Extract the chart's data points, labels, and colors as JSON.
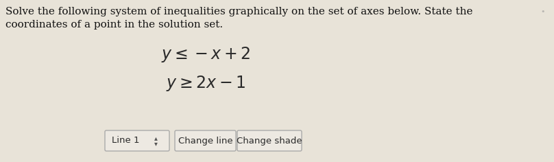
{
  "background_color": "#e8e3d8",
  "title_line1": "Solve the following system of inequalities graphically on the set of axes below. State the",
  "title_line2": "coordinates of a point in the solution set.",
  "eq1_latex": "$y \\leq -x + 2$",
  "eq2_latex": "$y \\geq 2x - 1$",
  "button1_text": "Line 1",
  "button2_text": "Change line",
  "button3_text": "Change shade",
  "text_color": "#2a2a2a",
  "title_color": "#111111",
  "button_bg": "#ede9e2",
  "button_border": "#aaaaaa",
  "arrow_color": "#555555",
  "title_fontsize": 11.0,
  "eq_fontsize": 17,
  "button_fontsize": 9.5,
  "dot_color": "#999999"
}
